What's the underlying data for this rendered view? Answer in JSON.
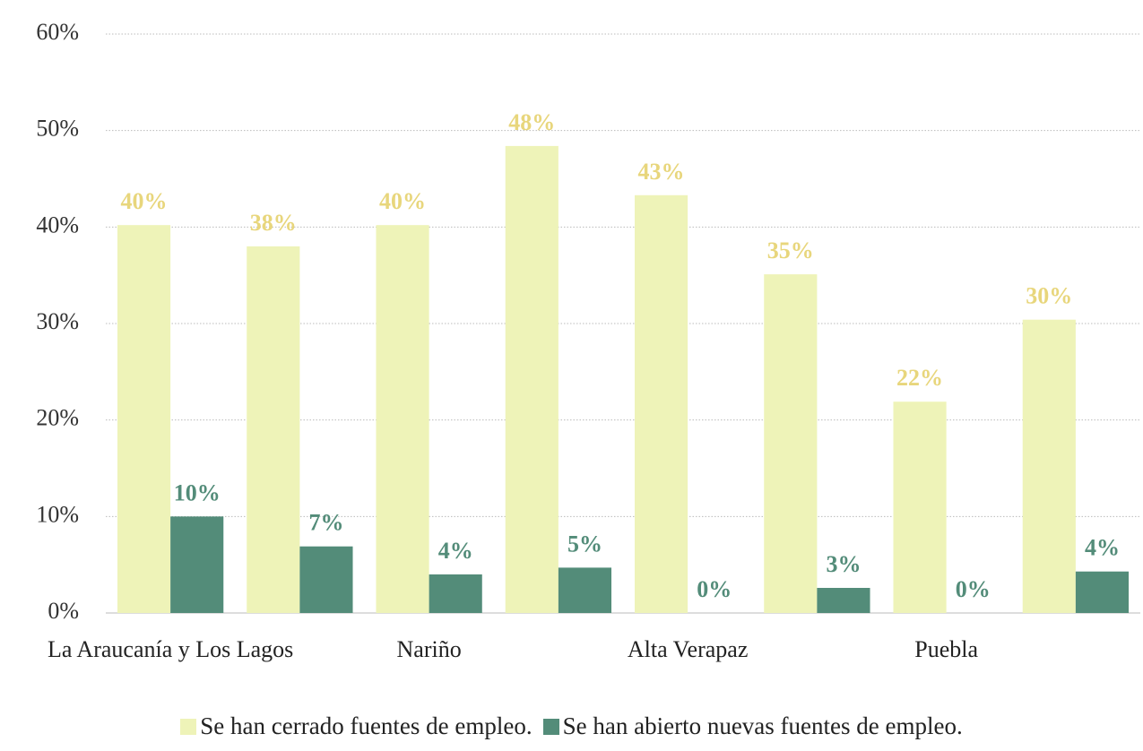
{
  "chart_data": {
    "type": "bar",
    "categories": [
      "La Araucanía y Los Lagos",
      null,
      "Nariño",
      null,
      "Alta Verapaz",
      null,
      "Puebla",
      null
    ],
    "series": [
      {
        "name": "Se han cerrado fuentes de empleo.",
        "color": "#eef3b8",
        "label_color": "#e8d67c",
        "values": [
          40.2,
          38,
          40.2,
          48.4,
          43.3,
          35.1,
          21.9,
          30.4
        ],
        "value_labels": [
          "40%",
          "38%",
          "40%",
          "48%",
          "43%",
          "35%",
          "22%",
          "30%"
        ]
      },
      {
        "name": "Se han abierto nuevas fuentes de empleo.",
        "color": "#538c79",
        "label_color": "#538c79",
        "values": [
          10,
          6.9,
          4,
          4.7,
          0,
          2.6,
          0,
          4.3
        ],
        "value_labels": [
          "10%",
          "7%",
          "4%",
          "5%",
          "0%",
          "3%",
          "0%",
          "4%"
        ]
      }
    ],
    "ylim": [
      0,
      60
    ],
    "yticks": [
      {
        "value": 0,
        "label": "0%"
      },
      {
        "value": 10,
        "label": "10%"
      },
      {
        "value": 20,
        "label": "20%"
      },
      {
        "value": 30,
        "label": "30%"
      },
      {
        "value": 40,
        "label": "40%"
      },
      {
        "value": 50,
        "label": "50%"
      },
      {
        "value": 60,
        "label": "60%"
      }
    ],
    "grid": true
  }
}
